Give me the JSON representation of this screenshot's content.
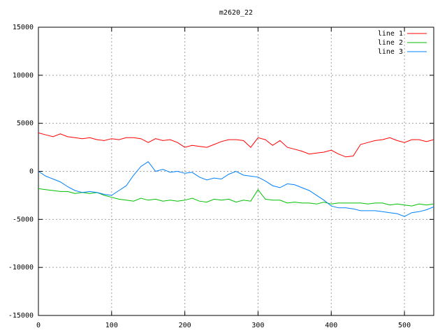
{
  "chart_data": {
    "type": "line",
    "title": "m2620_22",
    "x": [
      0,
      10,
      20,
      30,
      40,
      50,
      60,
      70,
      80,
      90,
      100,
      110,
      120,
      130,
      140,
      150,
      160,
      170,
      180,
      190,
      200,
      210,
      220,
      230,
      240,
      250,
      260,
      270,
      280,
      290,
      300,
      310,
      320,
      330,
      340,
      350,
      360,
      370,
      380,
      390,
      400,
      410,
      420,
      430,
      440,
      450,
      460,
      470,
      480,
      490,
      500,
      510,
      520,
      530,
      540
    ],
    "series": [
      {
        "name": "line 1",
        "color": "#ff0000",
        "values": [
          4000,
          3800,
          3600,
          3900,
          3600,
          3500,
          3400,
          3500,
          3300,
          3200,
          3400,
          3300,
          3500,
          3500,
          3400,
          3000,
          3400,
          3200,
          3300,
          3000,
          2500,
          2700,
          2600,
          2500,
          2800,
          3100,
          3300,
          3300,
          3200,
          2500,
          3500,
          3300,
          2700,
          3200,
          2500,
          2300,
          2100,
          1800,
          1900,
          2000,
          2200,
          1800,
          1500,
          1600,
          2800,
          3000,
          3200,
          3300,
          3500,
          3200,
          3000,
          3300,
          3300,
          3100,
          3300
        ]
      },
      {
        "name": "line 2",
        "color": "#00c000",
        "values": [
          -1800,
          -1900,
          -2000,
          -2100,
          -2100,
          -2300,
          -2200,
          -2300,
          -2200,
          -2500,
          -2700,
          -2900,
          -3000,
          -3100,
          -2800,
          -3000,
          -2900,
          -3100,
          -3000,
          -3100,
          -3000,
          -2800,
          -3100,
          -3200,
          -2900,
          -3000,
          -2900,
          -3200,
          -3000,
          -3100,
          -1900,
          -2900,
          -3000,
          -3000,
          -3300,
          -3200,
          -3300,
          -3300,
          -3400,
          -3200,
          -3400,
          -3300,
          -3300,
          -3300,
          -3300,
          -3400,
          -3300,
          -3300,
          -3500,
          -3400,
          -3500,
          -3600,
          -3400,
          -3500,
          -3400
        ]
      },
      {
        "name": "line 3",
        "color": "#0080ff",
        "values": [
          0,
          -500,
          -800,
          -1100,
          -1600,
          -2000,
          -2200,
          -2100,
          -2200,
          -2400,
          -2500,
          -2000,
          -1500,
          -400,
          500,
          1000,
          0,
          200,
          -100,
          0,
          -200,
          -100,
          -600,
          -900,
          -700,
          -800,
          -300,
          0,
          -400,
          -500,
          -600,
          -1000,
          -1500,
          -1700,
          -1300,
          -1400,
          -1700,
          -2000,
          -2500,
          -3000,
          -3600,
          -3800,
          -3800,
          -3900,
          -4100,
          -4100,
          -4100,
          -4200,
          -4300,
          -4400,
          -4700,
          -4300,
          -4200,
          -4000,
          -3700
        ]
      }
    ],
    "xlim": [
      0,
      540
    ],
    "xticks": [
      0,
      100,
      200,
      300,
      400,
      500
    ],
    "ylim": [
      -15000,
      15000
    ],
    "yticks": [
      -15000,
      -10000,
      -5000,
      0,
      5000,
      10000,
      15000
    ],
    "grid": true,
    "legend": "top-right"
  }
}
